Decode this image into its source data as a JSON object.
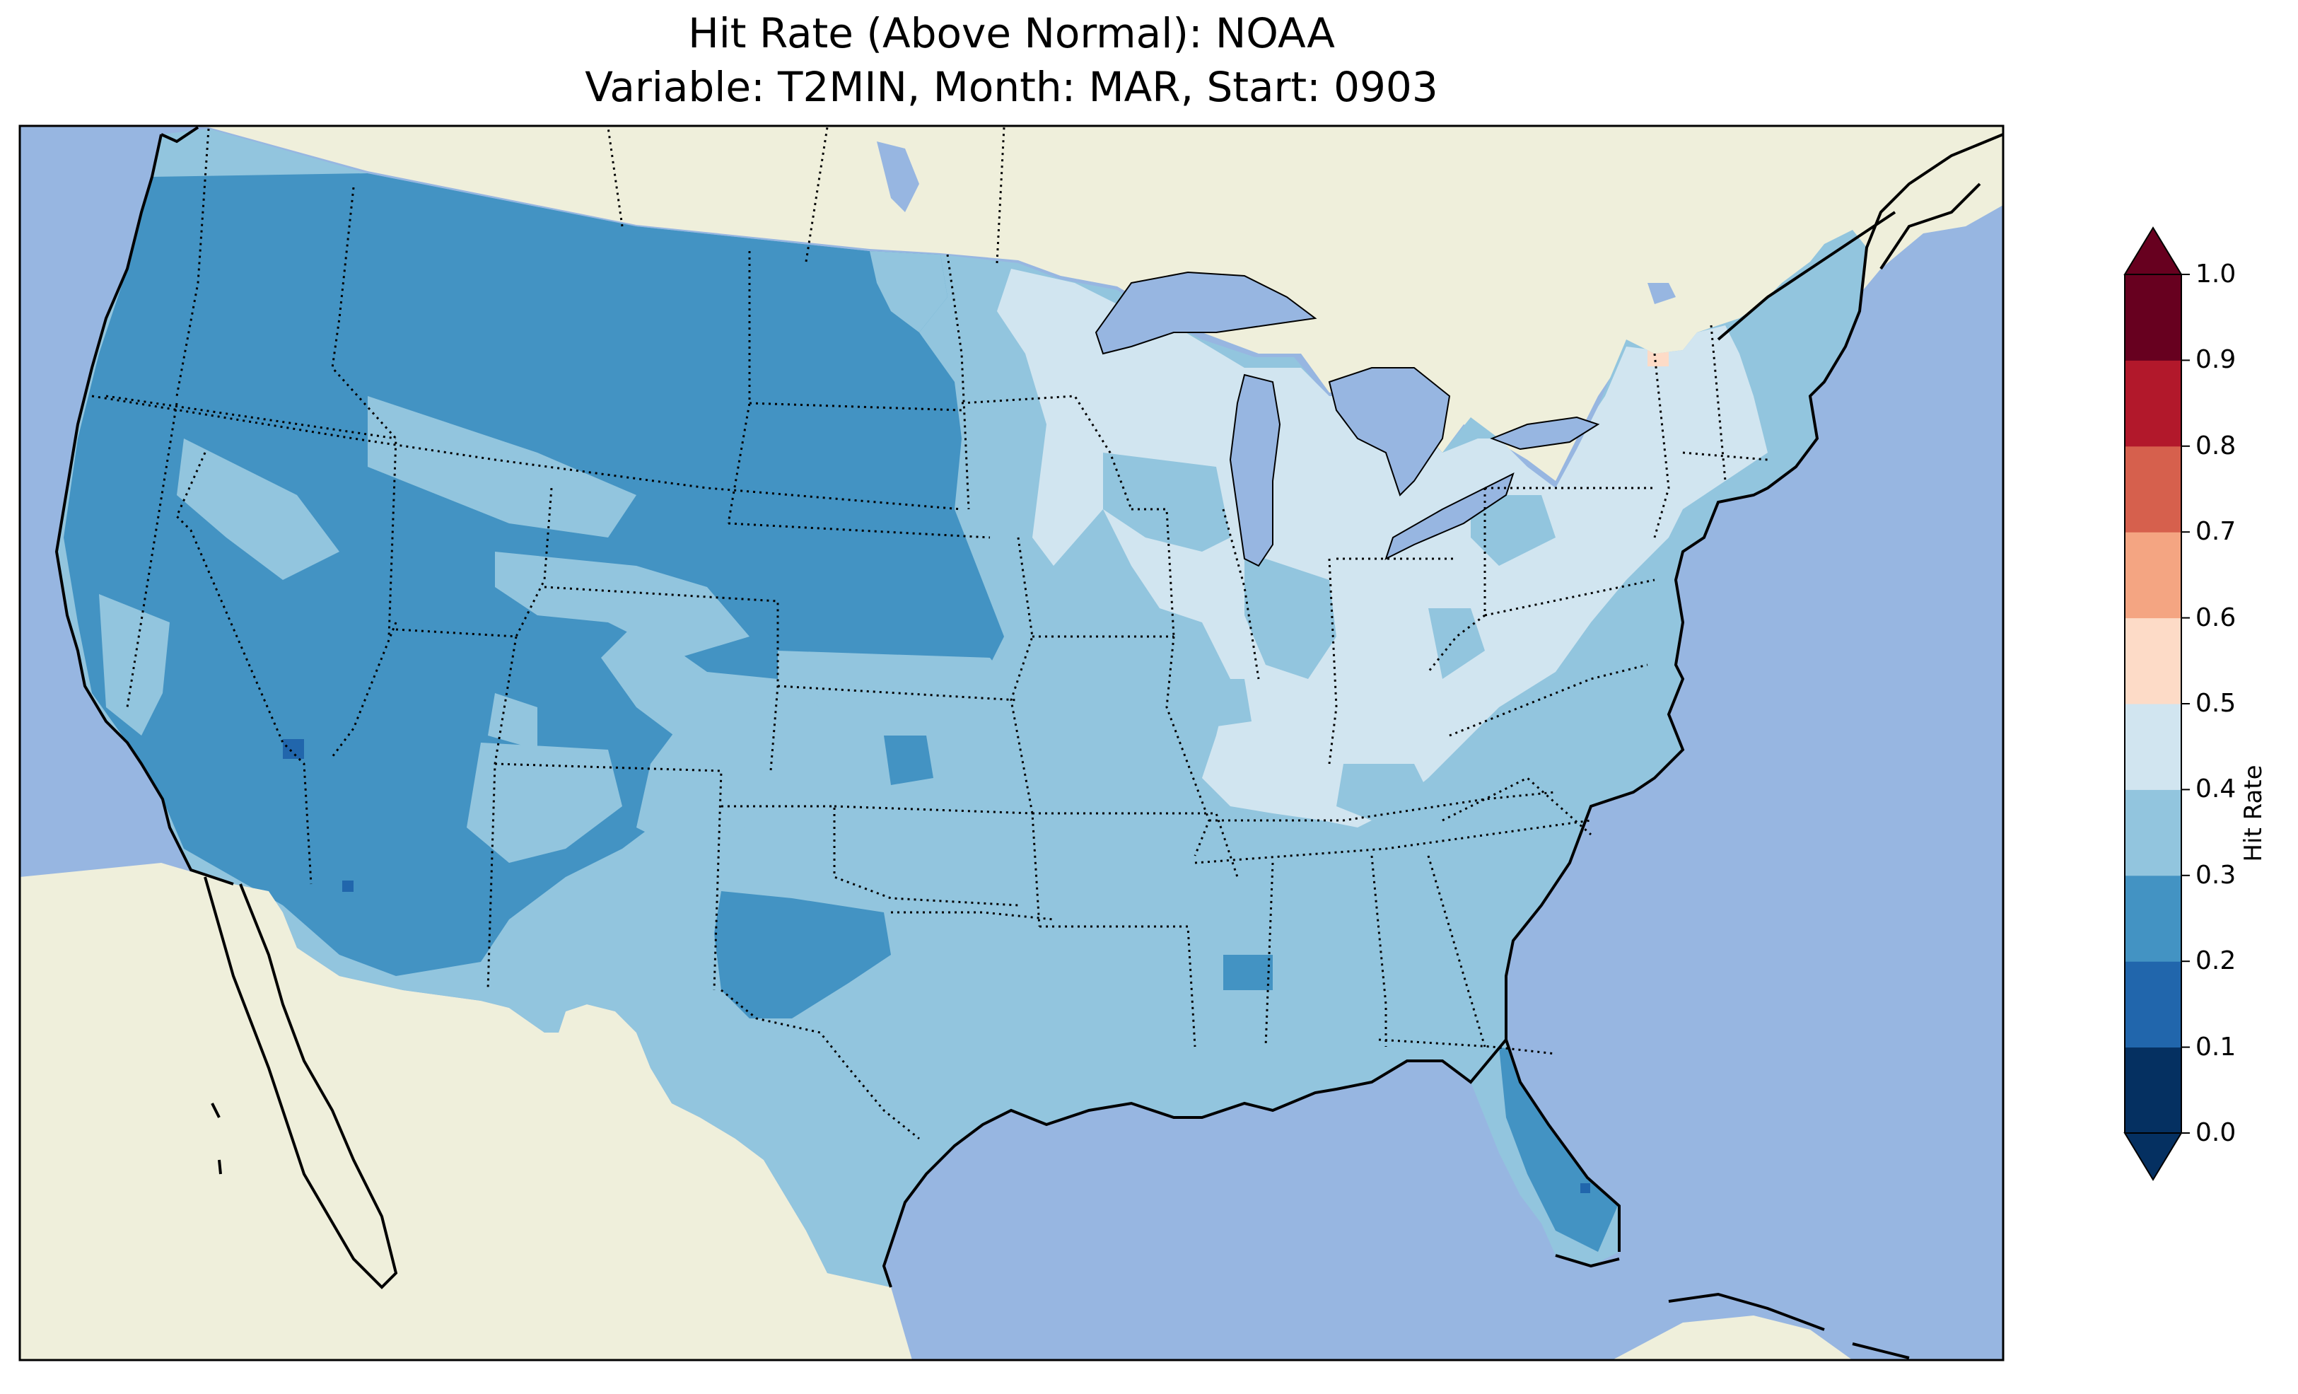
{
  "title": {
    "line1": "Hit Rate (Above Normal): NOAA",
    "line2": "Variable: T2MIN, Month: MAR, Start: 0903"
  },
  "colorbar": {
    "label": "Hit Rate",
    "ticks": [
      "0.0",
      "0.1",
      "0.2",
      "0.3",
      "0.4",
      "0.5",
      "0.6",
      "0.7",
      "0.8",
      "0.9",
      "1.0"
    ],
    "levels": [
      {
        "range": [
          0.0,
          0.1
        ],
        "color": "#053061"
      },
      {
        "range": [
          0.1,
          0.2
        ],
        "color": "#2166ac"
      },
      {
        "range": [
          0.2,
          0.3
        ],
        "color": "#4393c3"
      },
      {
        "range": [
          0.3,
          0.4
        ],
        "color": "#92c5de"
      },
      {
        "range": [
          0.4,
          0.5
        ],
        "color": "#d1e5f0"
      },
      {
        "range": [
          0.5,
          0.6
        ],
        "color": "#fddbc7"
      },
      {
        "range": [
          0.6,
          0.7
        ],
        "color": "#f4a582"
      },
      {
        "range": [
          0.7,
          0.8
        ],
        "color": "#d6604d"
      },
      {
        "range": [
          0.8,
          0.9
        ],
        "color": "#b2182b"
      },
      {
        "range": [
          0.9,
          1.0
        ],
        "color": "#67001f"
      }
    ],
    "extend": "both"
  },
  "map": {
    "region": "CONUS",
    "ocean_color": "#97b6e1",
    "land_color": "#efefdb",
    "lake_color": "#97b6e1",
    "state_borders": "dotted",
    "coastlines": "solid"
  }
}
